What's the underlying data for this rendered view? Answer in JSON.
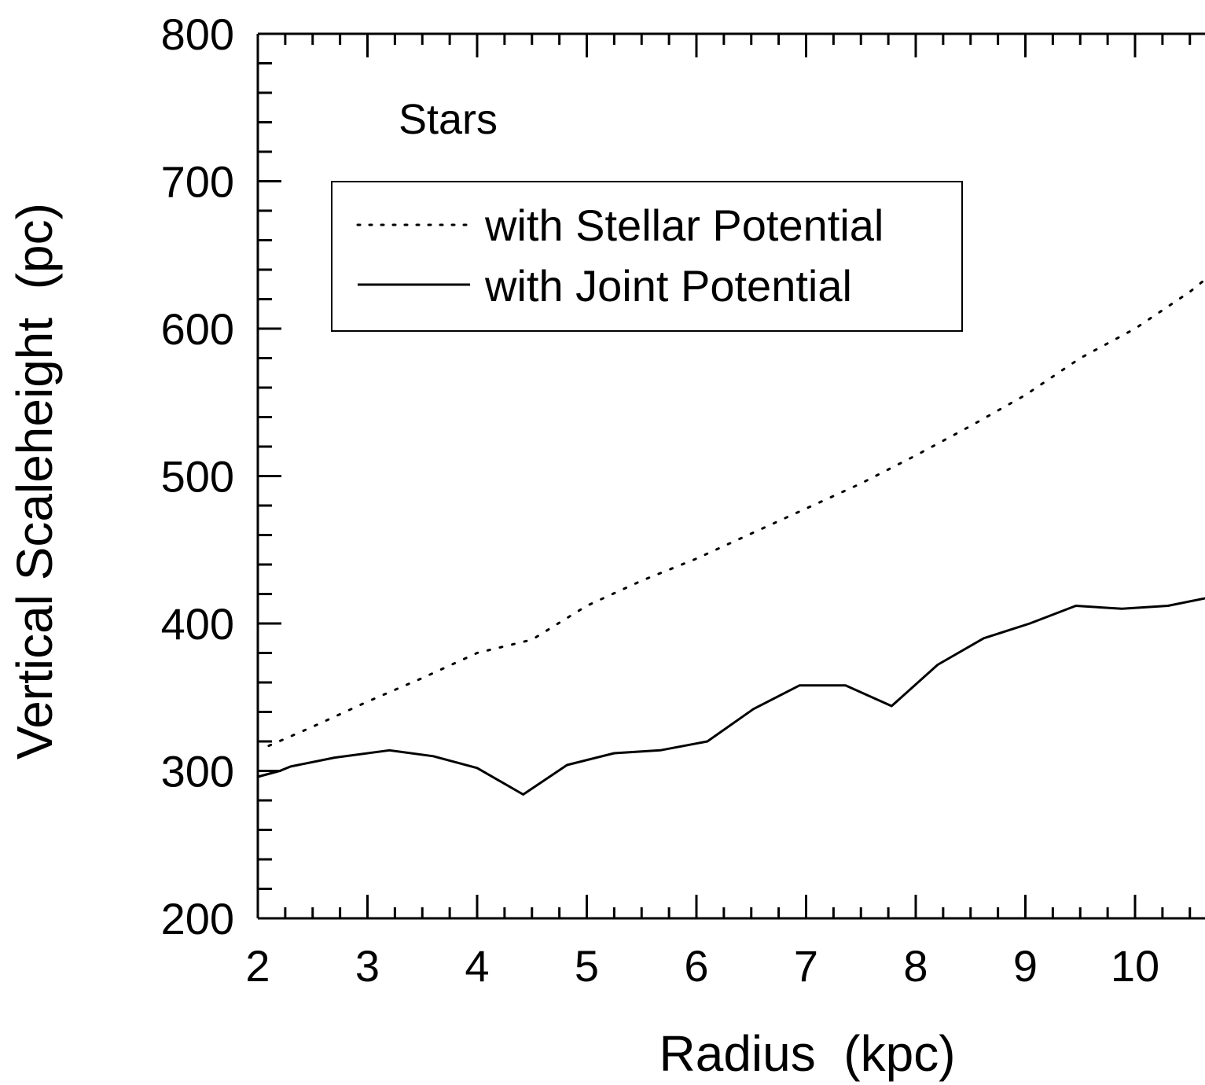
{
  "chart_data": {
    "type": "line",
    "title": "",
    "annotation": "Stars",
    "xlabel": "Radius  (kpc)",
    "ylabel": "Vertical Scaleheight  (pc)",
    "xlim": [
      2,
      10.9
    ],
    "ylim": [
      200,
      800
    ],
    "x_ticks": [
      2,
      3,
      4,
      5,
      6,
      7,
      8,
      9,
      10
    ],
    "y_ticks": [
      200,
      300,
      400,
      500,
      600,
      700,
      800
    ],
    "x_minor_step": 0.25,
    "y_minor_step": 20,
    "legend_position": "upper-left",
    "grid": false,
    "series": [
      {
        "name": "with Stellar Potential",
        "style": "dotted",
        "color": "#000000",
        "x": [
          2.1,
          2.5,
          3.0,
          3.5,
          4.0,
          4.5,
          5.0,
          5.5,
          6.0,
          6.5,
          7.0,
          7.5,
          8.0,
          8.5,
          9.0,
          9.5,
          10.0,
          10.5,
          10.9
        ],
        "y": [
          317,
          330,
          347,
          363,
          380,
          389,
          412,
          429,
          444,
          461,
          478,
          495,
          514,
          534,
          555,
          580,
          600,
          625,
          649
        ]
      },
      {
        "name": "with Joint Potential",
        "style": "solid",
        "color": "#000000",
        "x": [
          2.0,
          2.2,
          2.3,
          2.7,
          3.2,
          3.6,
          4.0,
          4.42,
          4.82,
          5.25,
          5.67,
          6.1,
          6.52,
          6.94,
          7.36,
          7.78,
          8.2,
          8.62,
          9.04,
          9.46,
          9.88,
          10.3,
          10.9
        ],
        "y": [
          296,
          300,
          303,
          309,
          314,
          310,
          302,
          284,
          304,
          312,
          314,
          320,
          342,
          358,
          358,
          344,
          372,
          390,
          400,
          412,
          410,
          412,
          421
        ]
      }
    ]
  }
}
